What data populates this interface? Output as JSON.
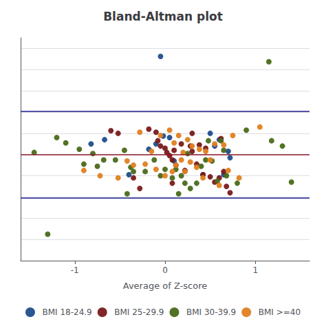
{
  "chart_data": {
    "type": "scatter",
    "title": "Bland-Altman plot",
    "xlabel": "Average of Z-score",
    "xlim": [
      -1.6,
      1.6
    ],
    "xticks": [
      -1,
      0,
      1
    ],
    "ylim": [
      -2.0,
      2.2
    ],
    "yticks": [
      -2.0,
      -1.6,
      -1.2,
      -0.8,
      -0.4,
      0.0,
      0.4,
      0.8,
      1.2,
      1.6,
      2.0
    ],
    "tick_labels": "x",
    "grid": true,
    "legend": "bottom",
    "reference_lines": [
      {
        "value": 0.0,
        "color": "#8B1a2a"
      },
      {
        "value": 0.82,
        "color": "#1a1a8B"
      },
      {
        "value": -0.82,
        "color": "#1a1a8B"
      }
    ],
    "series": [
      {
        "name": "BMI 18-24.9",
        "color": "#1f4e8c",
        "values": [
          [
            -0.02,
            0.35
          ],
          [
            -0.82,
            0.2
          ],
          [
            -0.67,
            0.28
          ],
          [
            -0.18,
            0.1
          ],
          [
            -0.1,
            0.2
          ],
          [
            0.05,
            0.32
          ],
          [
            0.1,
            -0.12
          ],
          [
            0.55,
            0.16
          ],
          [
            0.6,
            0.28
          ],
          [
            0.7,
            0.06
          ],
          [
            0.72,
            -0.06
          ],
          [
            -0.05,
            1.85
          ],
          [
            0.5,
            0.4
          ],
          [
            0.65,
            -0.38
          ],
          [
            0.42,
            -0.38
          ],
          [
            -0.4,
            -0.38
          ]
        ]
      },
      {
        "name": "BMI 25-29.9",
        "color": "#7a1a1a",
        "values": [
          [
            -0.6,
            0.45
          ],
          [
            -0.52,
            0.4
          ],
          [
            -0.18,
            0.48
          ],
          [
            -0.1,
            0.42
          ],
          [
            -0.08,
            0.26
          ],
          [
            -0.05,
            0.16
          ],
          [
            0.0,
            0.12
          ],
          [
            0.02,
            0.04
          ],
          [
            0.05,
            -0.02
          ],
          [
            0.08,
            -0.1
          ],
          [
            0.1,
            0.08
          ],
          [
            0.12,
            -0.2
          ],
          [
            0.18,
            0.2
          ],
          [
            0.22,
            -0.3
          ],
          [
            0.28,
            0.16
          ],
          [
            0.3,
            0.06
          ],
          [
            0.35,
            -0.18
          ],
          [
            0.38,
            0.18
          ],
          [
            0.42,
            -0.38
          ],
          [
            0.45,
            0.12
          ],
          [
            0.5,
            -0.42
          ],
          [
            0.55,
            -0.52
          ],
          [
            0.6,
            -0.44
          ],
          [
            0.62,
            0.3
          ],
          [
            0.65,
            -0.32
          ],
          [
            0.3,
            0.4
          ],
          [
            -0.35,
            -0.44
          ],
          [
            -0.28,
            -0.64
          ],
          [
            0.08,
            -0.54
          ],
          [
            0.68,
            -0.6
          ],
          [
            0.72,
            -0.72
          ]
        ]
      },
      {
        "name": "BMI 30-39.9",
        "color": "#4a6a1a",
        "values": [
          [
            -1.45,
            0.04
          ],
          [
            -1.3,
            -1.5
          ],
          [
            -1.2,
            0.32
          ],
          [
            -1.1,
            0.22
          ],
          [
            -0.95,
            0.1
          ],
          [
            -0.9,
            -0.18
          ],
          [
            -0.8,
            0.02
          ],
          [
            -0.75,
            -0.22
          ],
          [
            -0.68,
            -0.1
          ],
          [
            -0.55,
            -0.1
          ],
          [
            -0.45,
            0.08
          ],
          [
            -0.38,
            -0.24
          ],
          [
            -0.35,
            -0.32
          ],
          [
            -0.22,
            -0.32
          ],
          [
            -0.12,
            -0.1
          ],
          [
            -0.05,
            -0.4
          ],
          [
            0.0,
            -0.28
          ],
          [
            0.08,
            -0.44
          ],
          [
            0.12,
            -0.28
          ],
          [
            0.18,
            -0.4
          ],
          [
            0.22,
            -0.54
          ],
          [
            0.25,
            0.02
          ],
          [
            0.28,
            -0.64
          ],
          [
            0.35,
            -0.54
          ],
          [
            0.4,
            -0.22
          ],
          [
            0.45,
            -0.1
          ],
          [
            0.48,
            0.26
          ],
          [
            0.52,
            -0.12
          ],
          [
            0.58,
            -0.5
          ],
          [
            0.62,
            0.26
          ],
          [
            0.65,
            0.08
          ],
          [
            0.68,
            -0.4
          ],
          [
            0.8,
            -0.54
          ],
          [
            0.9,
            0.46
          ],
          [
            1.15,
            1.75
          ],
          [
            1.18,
            0.26
          ],
          [
            1.3,
            0.16
          ],
          [
            0.15,
            -0.74
          ],
          [
            -0.42,
            -0.74
          ],
          [
            1.4,
            -0.52
          ]
        ]
      },
      {
        "name": "BMI >=40",
        "color": "#e08020",
        "values": [
          [
            -0.9,
            -0.3
          ],
          [
            -0.72,
            -0.4
          ],
          [
            -0.52,
            -0.44
          ],
          [
            -0.42,
            -0.12
          ],
          [
            -0.35,
            -0.2
          ],
          [
            -0.28,
            0.42
          ],
          [
            -0.22,
            -0.18
          ],
          [
            -0.15,
            0.06
          ],
          [
            -0.1,
            -0.28
          ],
          [
            -0.05,
            0.36
          ],
          [
            0.0,
            -0.4
          ],
          [
            0.05,
            0.46
          ],
          [
            0.08,
            -0.32
          ],
          [
            0.1,
            0.22
          ],
          [
            0.12,
            -0.2
          ],
          [
            0.15,
            0.36
          ],
          [
            0.18,
            -0.1
          ],
          [
            0.2,
            0.04
          ],
          [
            0.22,
            -0.32
          ],
          [
            0.25,
            0.28
          ],
          [
            0.28,
            -0.14
          ],
          [
            0.3,
            0.16
          ],
          [
            0.35,
            -0.24
          ],
          [
            0.38,
            0.1
          ],
          [
            0.42,
            -0.44
          ],
          [
            0.45,
            0.06
          ],
          [
            0.5,
            -0.1
          ],
          [
            0.55,
            0.2
          ],
          [
            0.6,
            -0.58
          ],
          [
            0.65,
            0.18
          ],
          [
            0.7,
            -0.3
          ],
          [
            0.75,
            0.36
          ],
          [
            0.82,
            -0.44
          ],
          [
            1.05,
            0.52
          ]
        ]
      }
    ]
  }
}
